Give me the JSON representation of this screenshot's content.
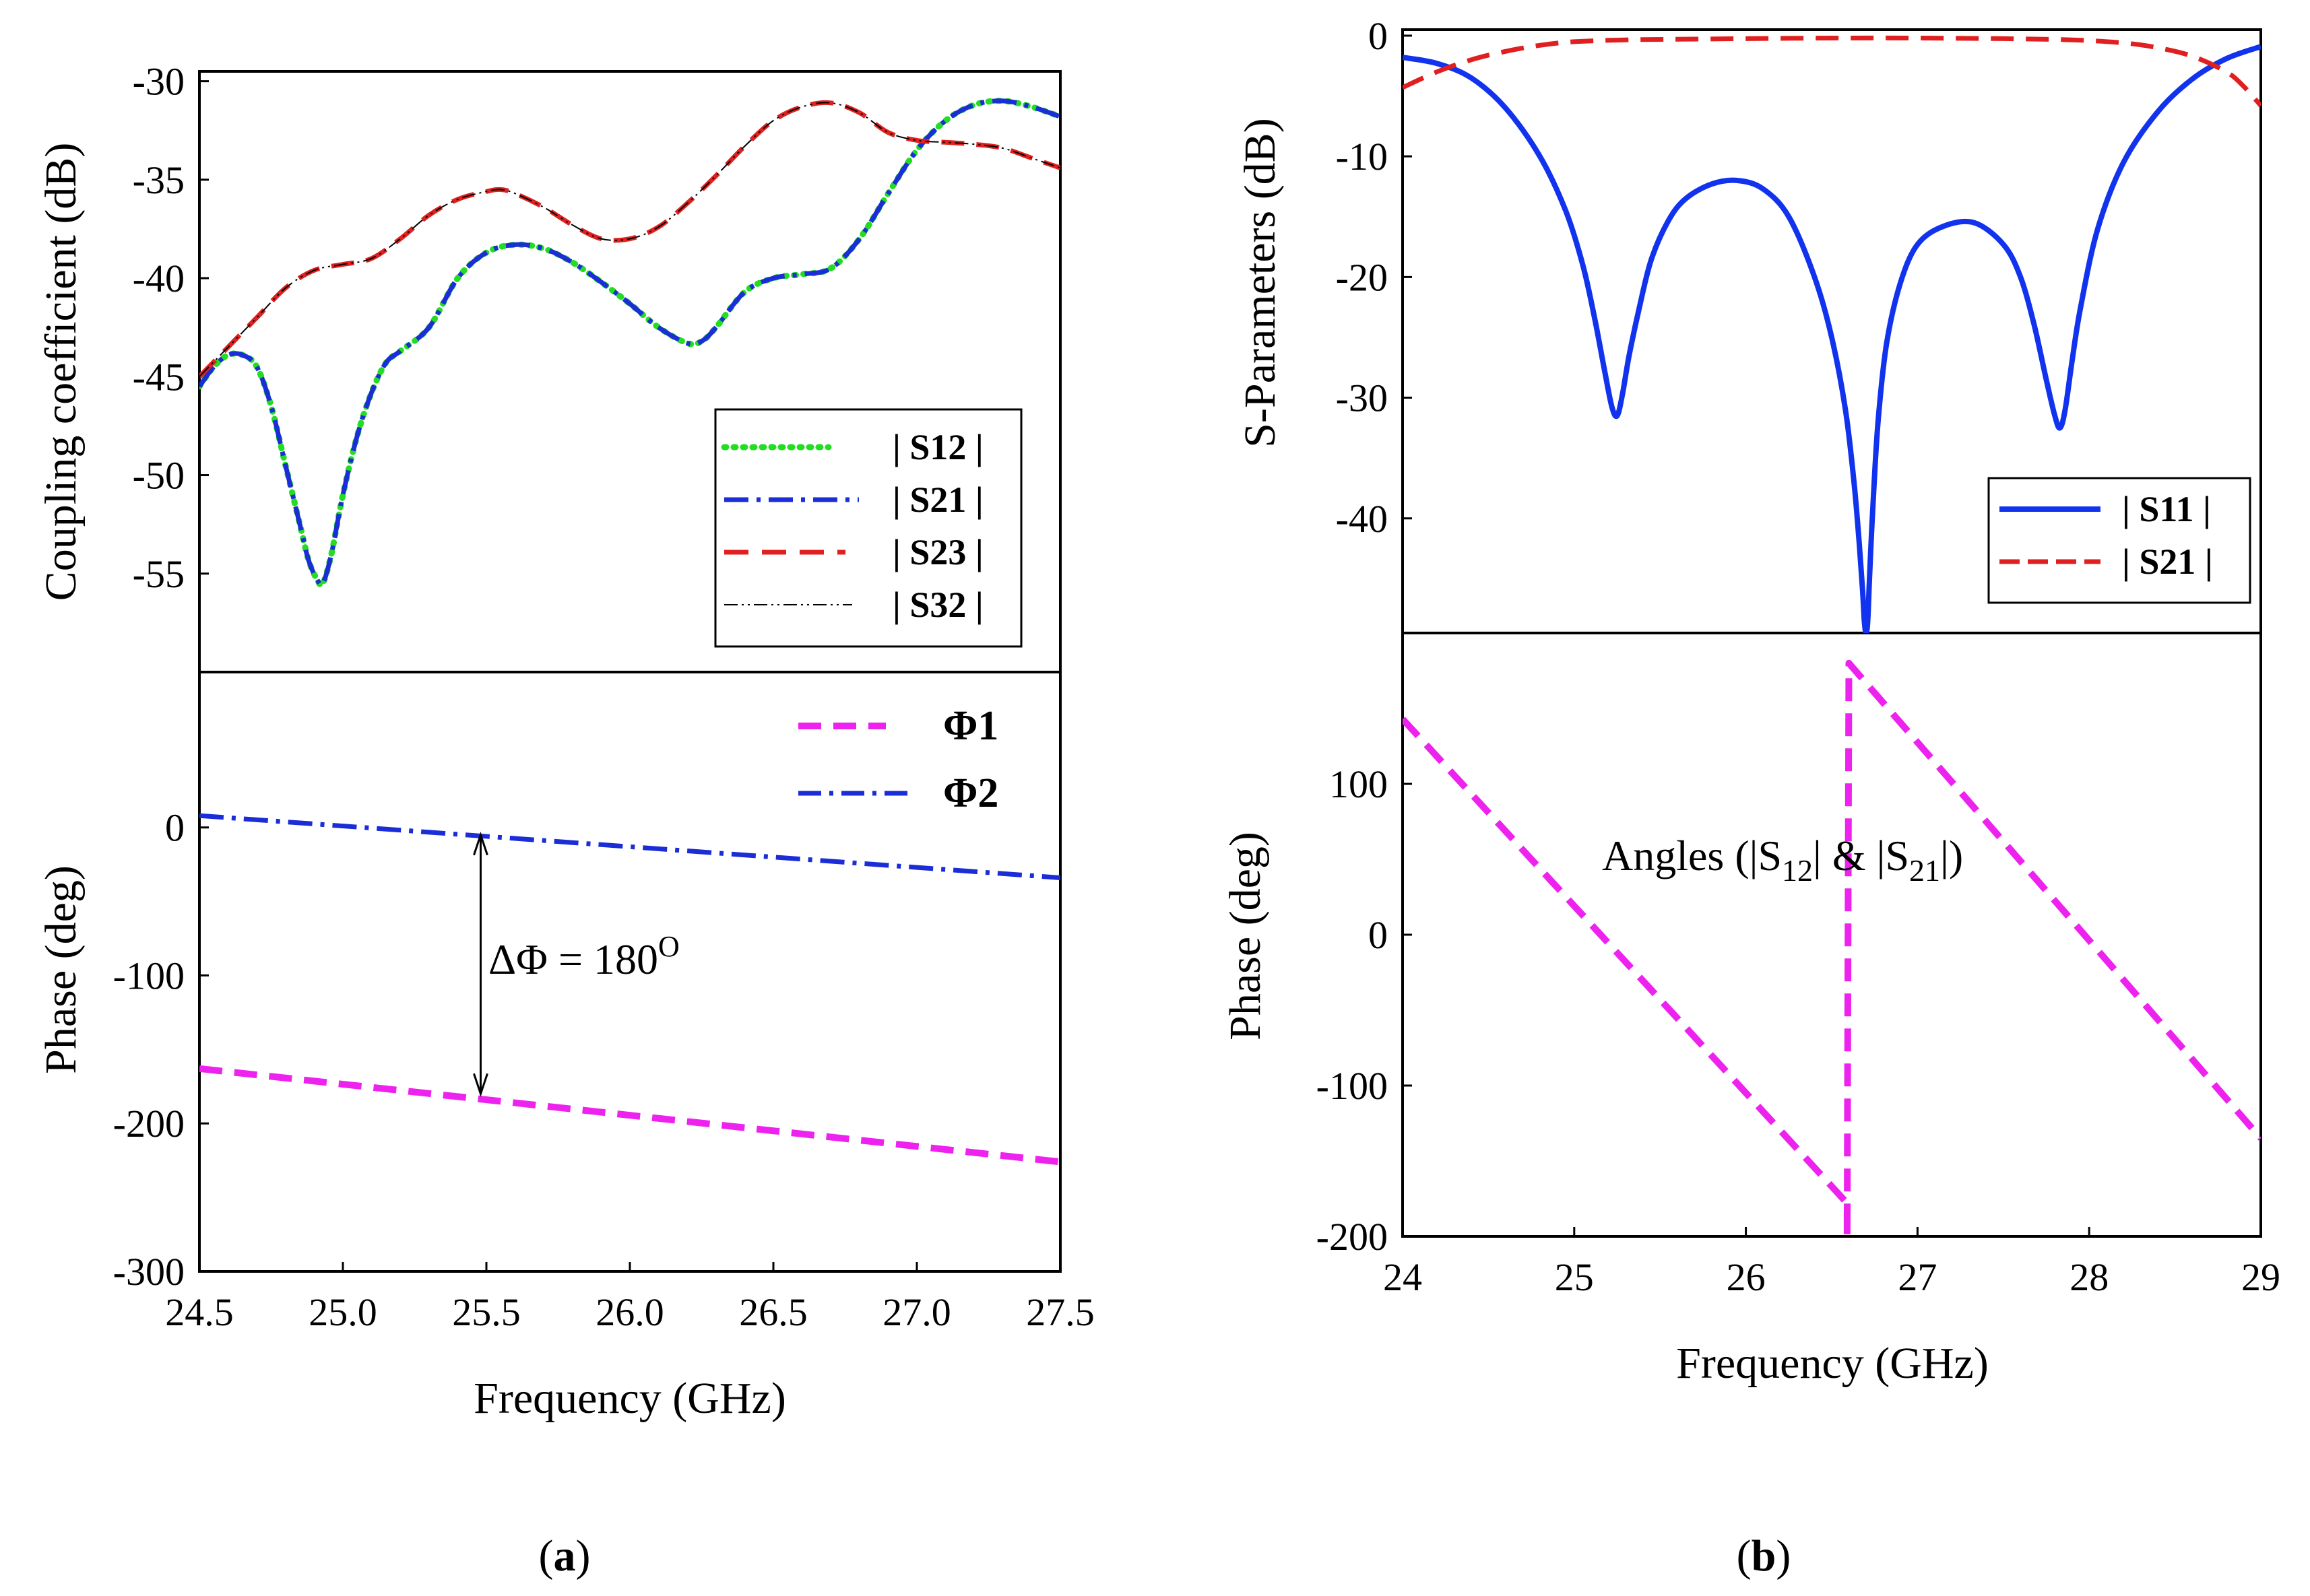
{
  "colors": {
    "green": "#22dd22",
    "blue": "#1a2dd6",
    "red": "#e02020",
    "black": "#000000",
    "magenta": "#ee22ee",
    "s11_blue": "#1133ee"
  },
  "captions": {
    "a": "a",
    "b": "b"
  },
  "chart_data": [
    {
      "id": "a_top",
      "type": "line",
      "title": "",
      "xlabel": "",
      "ylabel": "Coupling coefficient (dB)",
      "xlim": [
        24.5,
        27.5
      ],
      "ylim": [
        -60,
        -29.5
      ],
      "yticks": [
        -55,
        -50,
        -45,
        -40,
        -35,
        -30
      ],
      "grid": false,
      "legend_position": "bottom-right",
      "series": [
        {
          "name": "| S12 |",
          "style": "dotted",
          "color": "#22dd22",
          "x": [
            24.5,
            24.55,
            24.6,
            24.65,
            24.7,
            24.75,
            24.8,
            24.85,
            24.88,
            24.91,
            24.93,
            24.96,
            25.0,
            25.05,
            25.1,
            25.15,
            25.2,
            25.3,
            25.4,
            25.5,
            25.6,
            25.7,
            25.8,
            25.9,
            26.0,
            26.1,
            26.2,
            26.25,
            26.3,
            26.4,
            26.5,
            26.6,
            26.7,
            26.8,
            26.9,
            27.0,
            27.1,
            27.2,
            27.3,
            27.4,
            27.5
          ],
          "values": [
            -45.5,
            -44.5,
            -43.9,
            -43.9,
            -44.5,
            -46.5,
            -49.5,
            -52.5,
            -54.3,
            -55.3,
            -55.5,
            -54.0,
            -51.0,
            -48.0,
            -45.8,
            -44.3,
            -43.7,
            -42.5,
            -40.0,
            -38.7,
            -38.3,
            -38.5,
            -39.2,
            -40.2,
            -41.3,
            -42.5,
            -43.3,
            -43.2,
            -42.5,
            -40.7,
            -40.0,
            -39.8,
            -39.5,
            -38.0,
            -35.7,
            -33.5,
            -32.0,
            -31.2,
            -31.0,
            -31.3,
            -31.8
          ]
        },
        {
          "name": "| S21 |",
          "style": "dashdot",
          "color": "#1a2dd6",
          "x": [
            24.5,
            24.55,
            24.6,
            24.65,
            24.7,
            24.75,
            24.8,
            24.85,
            24.88,
            24.91,
            24.93,
            24.96,
            25.0,
            25.05,
            25.1,
            25.15,
            25.2,
            25.3,
            25.4,
            25.5,
            25.6,
            25.7,
            25.8,
            25.9,
            26.0,
            26.1,
            26.2,
            26.25,
            26.3,
            26.4,
            26.5,
            26.6,
            26.7,
            26.8,
            26.9,
            27.0,
            27.1,
            27.2,
            27.3,
            27.4,
            27.5
          ],
          "values": [
            -45.5,
            -44.5,
            -43.9,
            -43.9,
            -44.5,
            -46.5,
            -49.5,
            -52.5,
            -54.3,
            -55.3,
            -55.5,
            -54.0,
            -51.0,
            -48.0,
            -45.8,
            -44.3,
            -43.7,
            -42.5,
            -40.0,
            -38.7,
            -38.3,
            -38.5,
            -39.2,
            -40.2,
            -41.3,
            -42.5,
            -43.3,
            -43.2,
            -42.5,
            -40.7,
            -40.0,
            -39.8,
            -39.5,
            -38.0,
            -35.7,
            -33.5,
            -32.0,
            -31.2,
            -31.0,
            -31.3,
            -31.8
          ]
        },
        {
          "name": "| S23 |",
          "style": "dashed",
          "color": "#e02020",
          "x": [
            24.5,
            24.6,
            24.7,
            24.8,
            24.9,
            25.0,
            25.1,
            25.2,
            25.3,
            25.4,
            25.5,
            25.55,
            25.6,
            25.7,
            25.8,
            25.9,
            26.0,
            26.1,
            26.2,
            26.3,
            26.4,
            26.5,
            26.6,
            26.7,
            26.8,
            26.9,
            27.0,
            27.1,
            27.2,
            27.3,
            27.4,
            27.5
          ],
          "values": [
            -45.0,
            -43.5,
            -42.0,
            -40.5,
            -39.6,
            -39.3,
            -39.0,
            -38.0,
            -36.8,
            -36.0,
            -35.6,
            -35.5,
            -35.7,
            -36.4,
            -37.3,
            -38.0,
            -38.0,
            -37.4,
            -36.2,
            -34.8,
            -33.3,
            -32.0,
            -31.3,
            -31.1,
            -31.6,
            -32.6,
            -33.0,
            -33.1,
            -33.2,
            -33.4,
            -33.9,
            -34.4
          ]
        },
        {
          "name": "| S32 |",
          "style": "dashdotdot-thin",
          "color": "#000000",
          "x": [
            24.5,
            24.6,
            24.7,
            24.8,
            24.9,
            25.0,
            25.1,
            25.2,
            25.3,
            25.4,
            25.5,
            25.55,
            25.6,
            25.7,
            25.8,
            25.9,
            26.0,
            26.1,
            26.2,
            26.3,
            26.4,
            26.5,
            26.6,
            26.7,
            26.8,
            26.9,
            27.0,
            27.1,
            27.2,
            27.3,
            27.4,
            27.5
          ],
          "values": [
            -45.0,
            -43.5,
            -42.0,
            -40.5,
            -39.6,
            -39.3,
            -39.0,
            -38.0,
            -36.8,
            -36.0,
            -35.6,
            -35.5,
            -35.7,
            -36.4,
            -37.3,
            -38.0,
            -38.0,
            -37.4,
            -36.2,
            -34.8,
            -33.3,
            -32.0,
            -31.3,
            -31.1,
            -31.6,
            -32.6,
            -33.0,
            -33.1,
            -33.2,
            -33.4,
            -33.9,
            -34.4
          ]
        }
      ]
    },
    {
      "id": "a_bottom",
      "type": "line",
      "title": "",
      "xlabel": "Frequency (GHz)",
      "ylabel": "Phase (deg)",
      "xlim": [
        24.5,
        27.5
      ],
      "ylim": [
        -300,
        105
      ],
      "xticks": [
        "24.5",
        "25.0",
        "25.5",
        "26.0",
        "26.5",
        "27.0",
        "27.5"
      ],
      "yticks": [
        -300,
        -200,
        -100,
        0
      ],
      "grid": false,
      "legend_position": "top-right",
      "annotation": {
        "text": "ΔΦ  = 180",
        "superscript": "O",
        "x": 25.48,
        "y_top": -5,
        "y_bottom": -180
      },
      "series": [
        {
          "name": "Φ1",
          "style": "dashed-thick",
          "color": "#ee22ee",
          "x": [
            24.5,
            27.5
          ],
          "values": [
            -163,
            -226
          ]
        },
        {
          "name": "Φ2",
          "style": "dashdot",
          "color": "#1a2dd6",
          "x": [
            24.5,
            27.5
          ],
          "values": [
            8,
            -34
          ]
        }
      ]
    },
    {
      "id": "b_top",
      "type": "line",
      "title": "",
      "xlabel": "",
      "ylabel": "S-Parameters (dB)",
      "xlim": [
        24,
        29
      ],
      "ylim": [
        -49.5,
        0.5
      ],
      "yticks": [
        -40,
        -30,
        -20,
        -10,
        0
      ],
      "grid": false,
      "legend_position": "bottom-right",
      "series": [
        {
          "name": "| S11 |",
          "style": "solid",
          "color": "#1133ee",
          "x": [
            24.0,
            24.2,
            24.4,
            24.6,
            24.8,
            24.95,
            25.05,
            25.12,
            25.18,
            25.22,
            25.25,
            25.28,
            25.32,
            25.38,
            25.45,
            25.55,
            25.65,
            25.8,
            25.95,
            26.1,
            26.25,
            26.4,
            26.5,
            26.58,
            26.63,
            26.66,
            26.68,
            26.69,
            26.7,
            26.71,
            26.72,
            26.74,
            26.77,
            26.82,
            26.9,
            27.0,
            27.15,
            27.33,
            27.5,
            27.6,
            27.68,
            27.75,
            27.8,
            27.83,
            27.86,
            27.9,
            27.95,
            28.05,
            28.2,
            28.4,
            28.6,
            28.8,
            29.0
          ],
          "values": [
            -1.8,
            -2.3,
            -3.5,
            -6.0,
            -10.0,
            -14.5,
            -19.0,
            -23.5,
            -28.0,
            -30.8,
            -31.5,
            -29.8,
            -26.5,
            -22.5,
            -18.5,
            -15.3,
            -13.5,
            -12.3,
            -12.0,
            -12.7,
            -15.0,
            -20.0,
            -25.0,
            -31.0,
            -37.0,
            -42.0,
            -46.0,
            -48.5,
            -49.5,
            -48.5,
            -45.0,
            -39.0,
            -32.0,
            -25.5,
            -20.5,
            -17.3,
            -15.8,
            -15.5,
            -17.3,
            -20.0,
            -24.0,
            -28.5,
            -31.5,
            -32.5,
            -31.0,
            -27.0,
            -22.5,
            -16.0,
            -10.5,
            -6.3,
            -3.6,
            -1.9,
            -0.9
          ]
        },
        {
          "name": "| S21 |",
          "style": "dashed",
          "color": "#e02020",
          "x": [
            24.0,
            24.2,
            24.4,
            24.6,
            24.8,
            25.0,
            25.3,
            25.6,
            26.0,
            26.5,
            27.0,
            27.5,
            27.9,
            28.2,
            28.4,
            28.6,
            28.8,
            28.9,
            29.0
          ],
          "values": [
            -4.3,
            -3.0,
            -2.0,
            -1.3,
            -0.8,
            -0.5,
            -0.35,
            -0.3,
            -0.25,
            -0.2,
            -0.2,
            -0.25,
            -0.35,
            -0.6,
            -1.0,
            -1.7,
            -3.0,
            -4.2,
            -5.8
          ]
        }
      ]
    },
    {
      "id": "b_bottom",
      "type": "line",
      "title": "",
      "xlabel": "Frequency (GHz)",
      "ylabel": "Phase (deg)",
      "xlim": [
        24,
        29
      ],
      "ylim": [
        -200,
        200
      ],
      "xticks": [
        "24",
        "25",
        "26",
        "27",
        "28",
        "29"
      ],
      "yticks": [
        -200,
        -100,
        0,
        100
      ],
      "grid": false,
      "annotation": {
        "text": "Angles (|S12| & |S21|)"
      },
      "series": [
        {
          "name": "Angles",
          "style": "dashed-thick",
          "color": "#ee22ee",
          "x": [
            24.0,
            26.59,
            26.59,
            26.6,
            29.0
          ],
          "values": [
            143,
            -178,
            -200,
            180,
            -135
          ]
        }
      ]
    }
  ]
}
